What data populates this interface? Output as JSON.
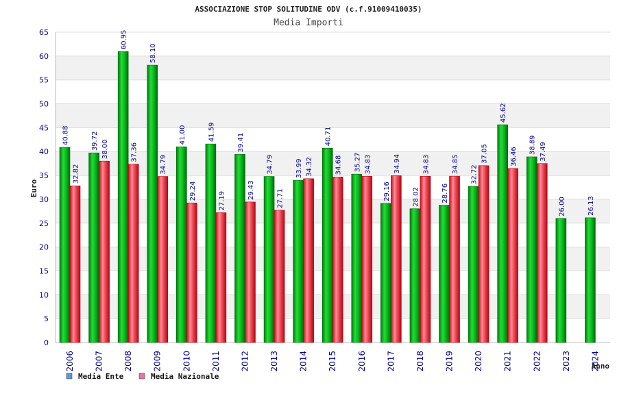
{
  "chart_data": {
    "type": "bar",
    "title": "ASSOCIAZIONE STOP SOLITUDINE ODV (c.f.91009410035)",
    "subtitle": "Media Importi",
    "xlabel": "Anno",
    "ylabel": "Euro",
    "ylim": [
      0,
      65
    ],
    "ytick_step": 5,
    "grid": "horizontal bands",
    "legend_position": "bottom-left",
    "categories": [
      "2006",
      "2007",
      "2008",
      "2009",
      "2010",
      "2011",
      "2012",
      "2013",
      "2014",
      "2015",
      "2016",
      "2017",
      "2018",
      "2019",
      "2020",
      "2021",
      "2022",
      "2023",
      "2024"
    ],
    "series": [
      {
        "name": "Media Ente",
        "legend_color": "#5b9bd5",
        "color": "#0aa81c",
        "values": [
          40.88,
          39.72,
          60.95,
          58.1,
          41.0,
          41.59,
          39.41,
          34.79,
          33.99,
          40.71,
          35.27,
          29.16,
          28.02,
          28.76,
          32.72,
          45.62,
          38.89,
          26.0,
          26.13
        ],
        "labels": [
          "40.88",
          "39.72",
          "60.95",
          "58.10",
          "41.00",
          "41.59",
          "39.41",
          "34.79",
          "33.99",
          "40.71",
          "35.27",
          "29.16",
          "28.02",
          "28.76",
          "32.72",
          "45.62",
          "38.89",
          "26.00",
          "26.13"
        ]
      },
      {
        "name": "Media Nazionale",
        "legend_color": "#e377a8",
        "color": "#e0303c",
        "values": [
          32.82,
          38.0,
          37.36,
          34.79,
          29.24,
          27.19,
          29.43,
          27.71,
          34.32,
          34.68,
          34.83,
          34.94,
          34.83,
          34.85,
          37.05,
          36.46,
          37.49,
          null,
          null
        ],
        "labels": [
          "32.82",
          "38.00",
          "37.36",
          "34.79",
          "29.24",
          "27.19",
          "29.43",
          "27.71",
          "34.32",
          "34.68",
          "34.83",
          "34.94",
          "34.83",
          "34.85",
          "37.05",
          "36.46",
          "37.49",
          "",
          ""
        ]
      }
    ]
  }
}
